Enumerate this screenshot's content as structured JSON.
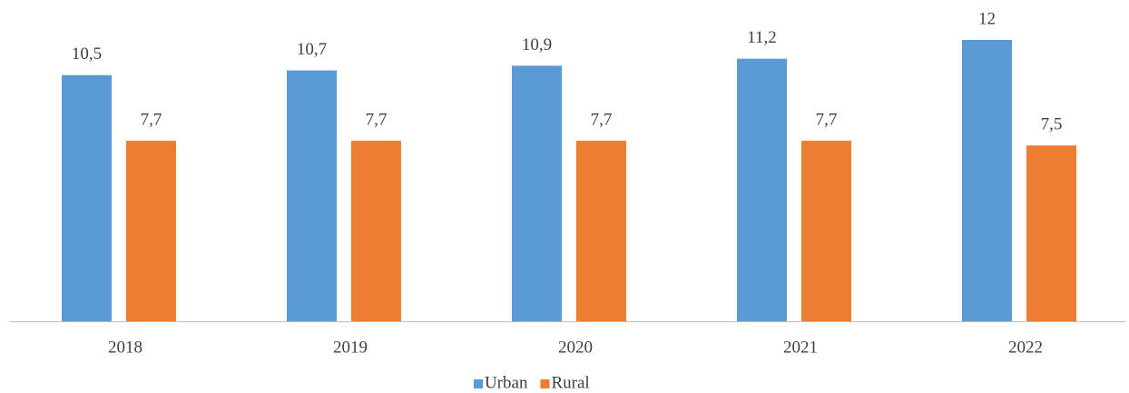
{
  "chart_data": {
    "type": "bar",
    "categories": [
      "2018",
      "2019",
      "2020",
      "2021",
      "2022"
    ],
    "series": [
      {
        "name": "Urban",
        "color": "#5b9bd5",
        "values": [
          10.5,
          10.7,
          10.9,
          11.2,
          12
        ],
        "value_labels": [
          "10,5",
          "10,7",
          "10,9",
          "11,2",
          "12"
        ]
      },
      {
        "name": "Rural",
        "color": "#ed7d31",
        "values": [
          7.7,
          7.7,
          7.7,
          7.7,
          7.5
        ],
        "value_labels": [
          "7,7",
          "7,7",
          "7,7",
          "7,7",
          "7,5"
        ]
      }
    ],
    "legend": "bottom"
  }
}
